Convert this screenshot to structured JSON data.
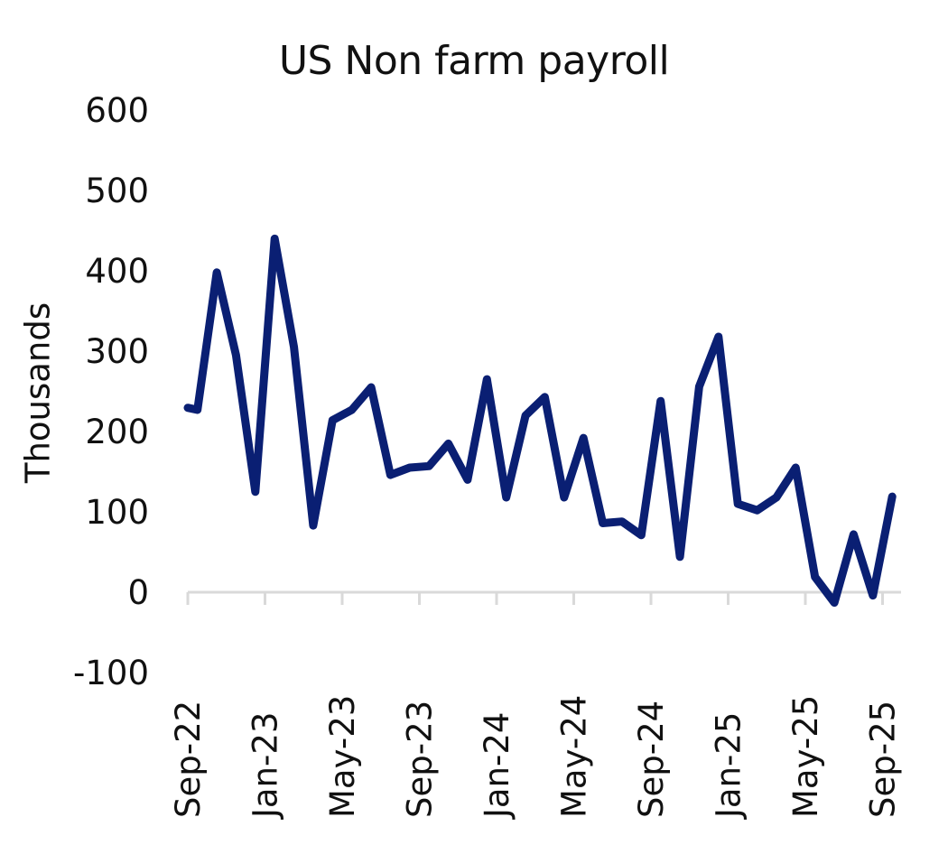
{
  "chart_data": {
    "type": "line",
    "title": "US Non farm payroll",
    "xlabel": "",
    "ylabel": "Thousands",
    "ylim": [
      -100,
      600
    ],
    "yticks": [
      600,
      500,
      400,
      300,
      200,
      100,
      0,
      -100
    ],
    "xtick_labels": [
      "Sep-22",
      "Jan-23",
      "May-23",
      "Sep-23",
      "Jan-24",
      "May-24",
      "Sep-24",
      "Jan-25",
      "May-25",
      "Sep-25"
    ],
    "grid": false,
    "legend": null,
    "series": [
      {
        "name": "US Non farm payroll",
        "color": "#0a1f73",
        "x": [
          "Aug-22",
          "Sep-22",
          "Oct-22",
          "Nov-22",
          "Dec-22",
          "Jan-23",
          "Feb-23",
          "Mar-23",
          "Apr-23",
          "May-23",
          "Jun-23",
          "Jul-23",
          "Aug-23",
          "Sep-23",
          "Oct-23",
          "Nov-23",
          "Dec-23",
          "Jan-24",
          "Feb-24",
          "Mar-24",
          "Apr-24",
          "May-24",
          "Jun-24",
          "Jul-24",
          "Aug-24",
          "Sep-24",
          "Oct-24",
          "Nov-24",
          "Dec-24",
          "Jan-25",
          "Feb-25",
          "Mar-25",
          "Apr-25",
          "May-25",
          "Jun-25",
          "Jul-25",
          "Aug-25",
          "Sep-25"
        ],
        "values": [
          232,
          227,
          398,
          295,
          125,
          440,
          305,
          83,
          214,
          227,
          255,
          146,
          155,
          157,
          185,
          140,
          265,
          118,
          220,
          243,
          118,
          192,
          86,
          88,
          71,
          238,
          44,
          256,
          318,
          110,
          102,
          118,
          155,
          19,
          -13,
          72,
          -4,
          119
        ]
      }
    ]
  }
}
